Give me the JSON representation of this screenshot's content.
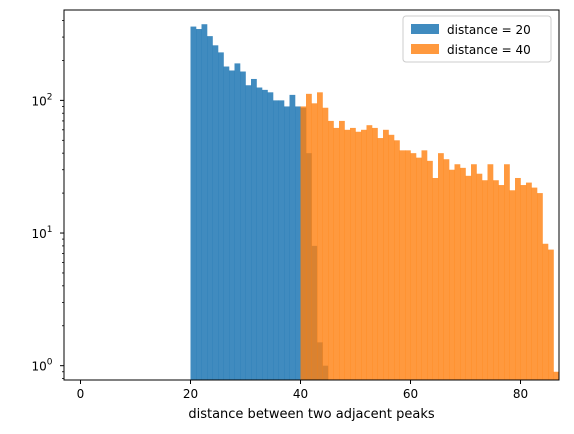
{
  "chart_data": {
    "type": "histogram",
    "xlabel": "distance between two adjacent peaks",
    "ylabel": "",
    "xlim": [
      -3,
      87
    ],
    "ylim": [
      0.78,
      480
    ],
    "yscale": "log",
    "xticks": [
      0,
      20,
      40,
      60,
      80
    ],
    "xtick_labels": [
      "0",
      "20",
      "40",
      "60",
      "80"
    ],
    "yticks": [
      1,
      10,
      100
    ],
    "ytick_labels": [
      "10^0",
      "10^1",
      "10^2"
    ],
    "bin_width": 1,
    "legend_position": "top-right",
    "series": [
      {
        "name": "distance = 20",
        "color": "#1f77b4",
        "alpha": 0.85,
        "bins": [
          {
            "x": 20,
            "count": 360
          },
          {
            "x": 21,
            "count": 345
          },
          {
            "x": 22,
            "count": 375
          },
          {
            "x": 23,
            "count": 305
          },
          {
            "x": 24,
            "count": 260
          },
          {
            "x": 25,
            "count": 230
          },
          {
            "x": 26,
            "count": 180
          },
          {
            "x": 27,
            "count": 168
          },
          {
            "x": 28,
            "count": 190
          },
          {
            "x": 29,
            "count": 165
          },
          {
            "x": 30,
            "count": 130
          },
          {
            "x": 31,
            "count": 145
          },
          {
            "x": 32,
            "count": 125
          },
          {
            "x": 33,
            "count": 120
          },
          {
            "x": 34,
            "count": 115
          },
          {
            "x": 35,
            "count": 100
          },
          {
            "x": 36,
            "count": 100
          },
          {
            "x": 37,
            "count": 90
          },
          {
            "x": 38,
            "count": 110
          },
          {
            "x": 39,
            "count": 90
          },
          {
            "x": 40,
            "count": 88
          },
          {
            "x": 41,
            "count": 40
          },
          {
            "x": 42,
            "count": 8
          },
          {
            "x": 43,
            "count": 1.5
          },
          {
            "x": 44,
            "count": 1
          }
        ]
      },
      {
        "name": "distance = 40",
        "color": "#ff7f0e",
        "alpha": 0.8,
        "bins": [
          {
            "x": 40,
            "count": 90
          },
          {
            "x": 41,
            "count": 112
          },
          {
            "x": 42,
            "count": 95
          },
          {
            "x": 43,
            "count": 115
          },
          {
            "x": 44,
            "count": 88
          },
          {
            "x": 45,
            "count": 70
          },
          {
            "x": 46,
            "count": 62
          },
          {
            "x": 47,
            "count": 70
          },
          {
            "x": 48,
            "count": 60
          },
          {
            "x": 49,
            "count": 62
          },
          {
            "x": 50,
            "count": 58
          },
          {
            "x": 51,
            "count": 60
          },
          {
            "x": 52,
            "count": 65
          },
          {
            "x": 53,
            "count": 62
          },
          {
            "x": 54,
            "count": 52
          },
          {
            "x": 55,
            "count": 60
          },
          {
            "x": 56,
            "count": 55
          },
          {
            "x": 57,
            "count": 50
          },
          {
            "x": 58,
            "count": 42
          },
          {
            "x": 59,
            "count": 42
          },
          {
            "x": 60,
            "count": 40
          },
          {
            "x": 61,
            "count": 37
          },
          {
            "x": 62,
            "count": 42
          },
          {
            "x": 63,
            "count": 35
          },
          {
            "x": 64,
            "count": 26
          },
          {
            "x": 65,
            "count": 40
          },
          {
            "x": 66,
            "count": 36
          },
          {
            "x": 67,
            "count": 30
          },
          {
            "x": 68,
            "count": 33
          },
          {
            "x": 69,
            "count": 31
          },
          {
            "x": 70,
            "count": 27
          },
          {
            "x": 71,
            "count": 33
          },
          {
            "x": 72,
            "count": 28
          },
          {
            "x": 73,
            "count": 25
          },
          {
            "x": 74,
            "count": 33
          },
          {
            "x": 75,
            "count": 25
          },
          {
            "x": 76,
            "count": 23
          },
          {
            "x": 77,
            "count": 33
          },
          {
            "x": 78,
            "count": 21
          },
          {
            "x": 79,
            "count": 26
          },
          {
            "x": 80,
            "count": 23
          },
          {
            "x": 81,
            "count": 24
          },
          {
            "x": 82,
            "count": 22
          },
          {
            "x": 83,
            "count": 20
          },
          {
            "x": 84,
            "count": 8.3
          },
          {
            "x": 85,
            "count": 7.5
          },
          {
            "x": 86,
            "count": 0.9
          }
        ]
      }
    ]
  }
}
